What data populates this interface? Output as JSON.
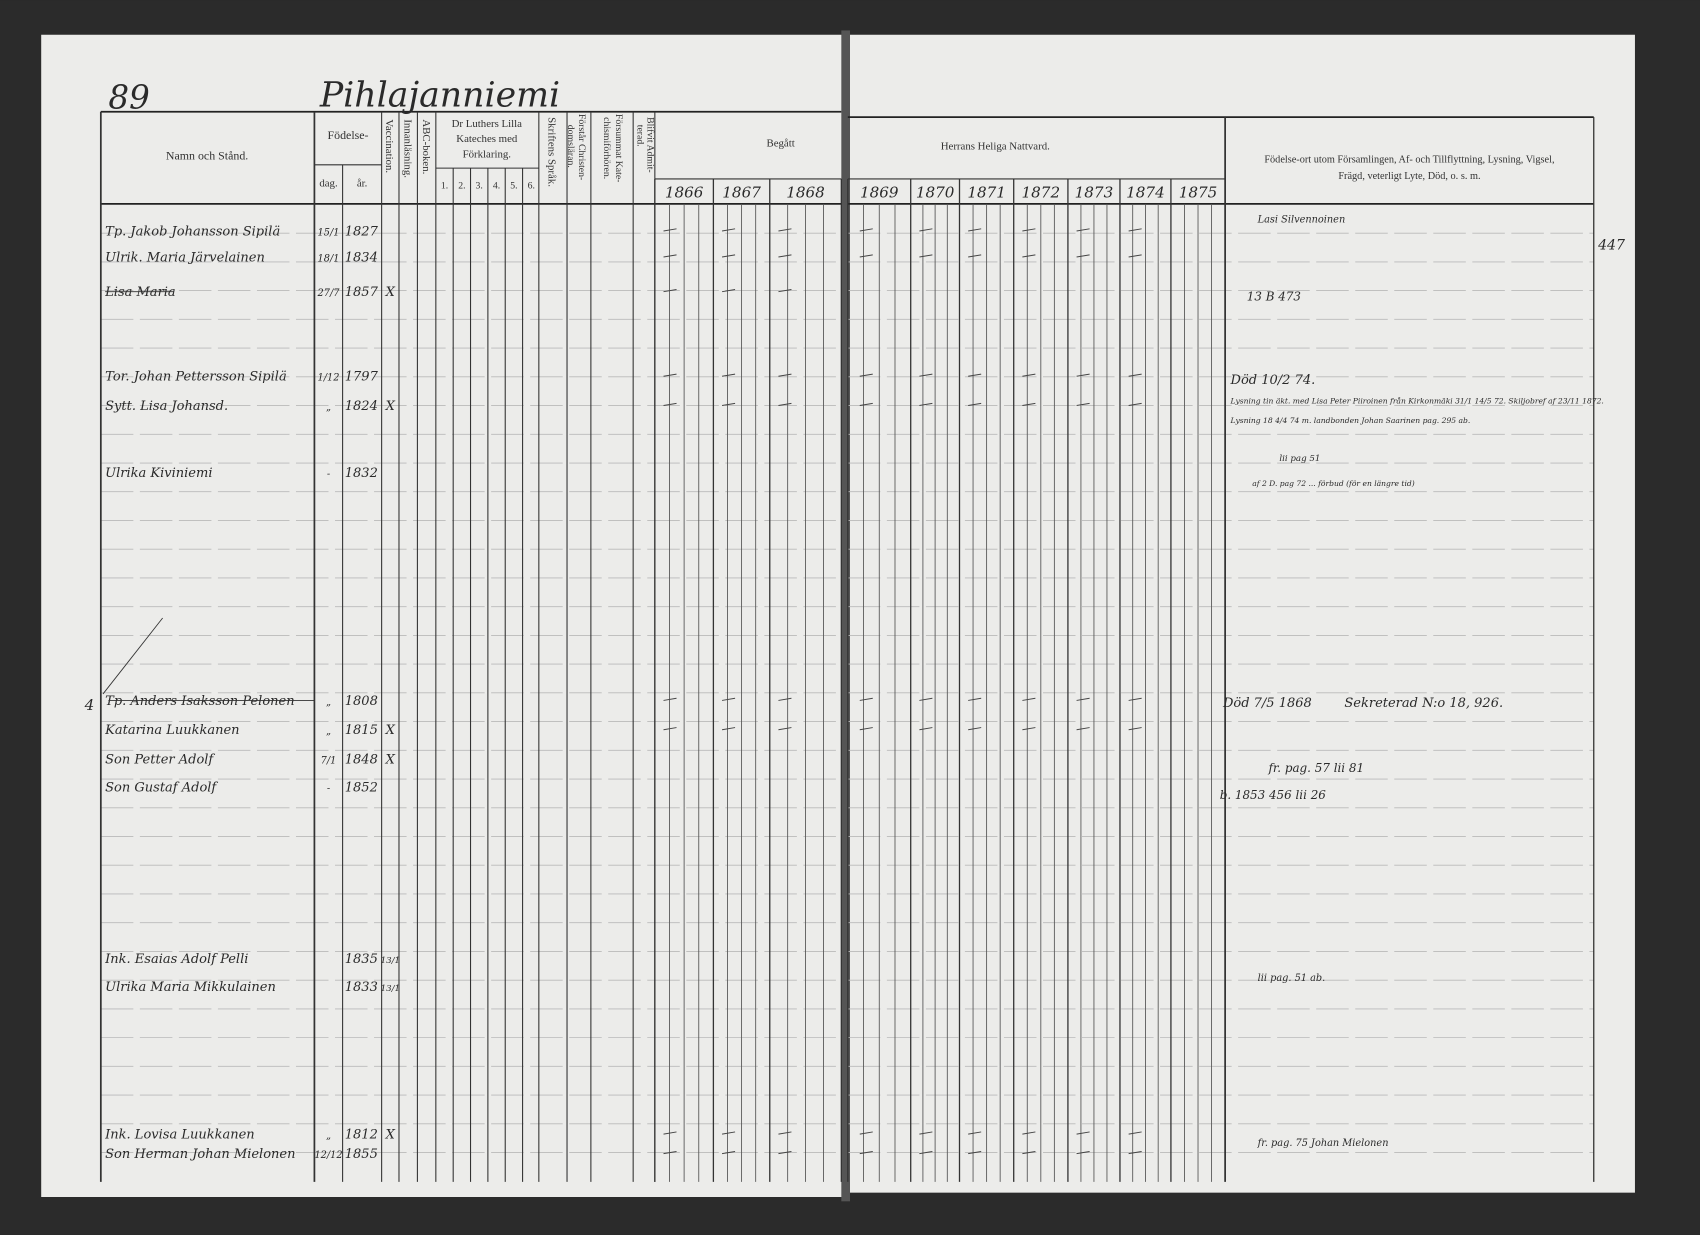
{
  "page": {
    "page_number": "89",
    "place_name": "Pihlajanniemi",
    "margin_number": "447",
    "row_marker": "4"
  },
  "header": {
    "name": "Namn och Stånd.",
    "birth": "Födelse-",
    "birth_day": "dag.",
    "birth_year": "år.",
    "vaccination": "Vaccination.",
    "reading": "Innanläsning.",
    "abc": "ABC-boken.",
    "luther": [
      "Dr Luthers Lilla",
      "Kateches med",
      "Förklaring."
    ],
    "luther_parts": [
      "1.",
      "2.",
      "3.",
      "4.",
      "5.",
      "6."
    ],
    "scripture": "Skriftens Språk.",
    "doctrine": [
      "Förstår Christen-",
      "domsläran."
    ],
    "missed": [
      "Försummat Kate-",
      "chismiförhören."
    ],
    "admitted": [
      "Blifvit Admit-",
      "terad."
    ],
    "begatt": "Begått",
    "begatt_years": [
      "1866",
      "1867",
      "1868"
    ],
    "nattvard": "Herrans Heliga Nattvard.",
    "nattvard_years": [
      "1869",
      "1870",
      "1871",
      "1872",
      "1873",
      "1874",
      "1875"
    ],
    "remarks": [
      "Födelse-ort utom Församlingen, Af- och Tillflyttning, Lysning, Vigsel,",
      "Frägd, veterligt Lyte, Död, o. s. m."
    ]
  },
  "rows": [
    {
      "name": "Tp. Jakob Johansson Sipilä",
      "day": "15/1",
      "year": "1827"
    },
    {
      "name": "Ulrik. Maria Järvelainen",
      "day": "18/1",
      "year": "1834"
    },
    {
      "name": "Lisa Maria",
      "day": "27/7",
      "year": "1857",
      "vacc": "X"
    },
    {
      "name": "Tor. Johan Pettersson Sipilä",
      "day": "1/12",
      "year": "1797"
    },
    {
      "name": "Sytt. Lisa Johansd.",
      "day": "„",
      "year": "1824",
      "vacc": "X"
    },
    {
      "name": "Ulrika Kiviniemi",
      "day": "-",
      "year": "1832"
    },
    {
      "name": "Tp. Anders Isaksson Pelonen",
      "day": "„",
      "year": "1808"
    },
    {
      "name": "Katarina Luukkanen",
      "day": "„",
      "year": "1815",
      "vacc": "X"
    },
    {
      "name": "Son Petter Adolf",
      "day": "7/1",
      "year": "1848",
      "vacc": "X"
    },
    {
      "name": "Son Gustaf Adolf",
      "day": "-",
      "year": "1852"
    },
    {
      "name": "Ink. Esaias Adolf Pelli",
      "day": "",
      "year": "1835",
      "vacc": "13/1"
    },
    {
      "name": "Ulrika Maria Mikkulainen",
      "day": "",
      "year": "1833",
      "vacc": "13/1"
    },
    {
      "name": "Ink. Lovisa Luukkanen",
      "day": "„",
      "year": "1812",
      "vacc": "X"
    },
    {
      "name": "Son Herman Johan Mielonen",
      "day": "12/12",
      "year": "1855"
    }
  ],
  "notes": [
    "Lasi Silvennoinen",
    "13 B 473",
    "Död 10/2 74.",
    "Lysning tin äkt. med Lisa Peter Piiroinen från Kirkonmäki 31/1 14/5 72. Skiljobref af 23/11 1872.",
    "Lysning 18 4/4 74 m. landbonden Johan Saarinen pag. 295 ab.",
    "lii pag 51",
    "af 2 D. pag 72 ... förbud (för en längre tid)",
    "Död 7/5 1868",
    "Sekreterad N:o 18, 926.",
    "fr. pag. 57 lii 81",
    "b. 1853 456 lii 26",
    "lii pag. 51 ab.",
    "fr. pag. 75 Johan Mielonen"
  ],
  "colors": {
    "paper": "#ececea",
    "ink": "#2a2a2a",
    "rule": "#8a8a8a",
    "binding": "#2b2b2b"
  }
}
